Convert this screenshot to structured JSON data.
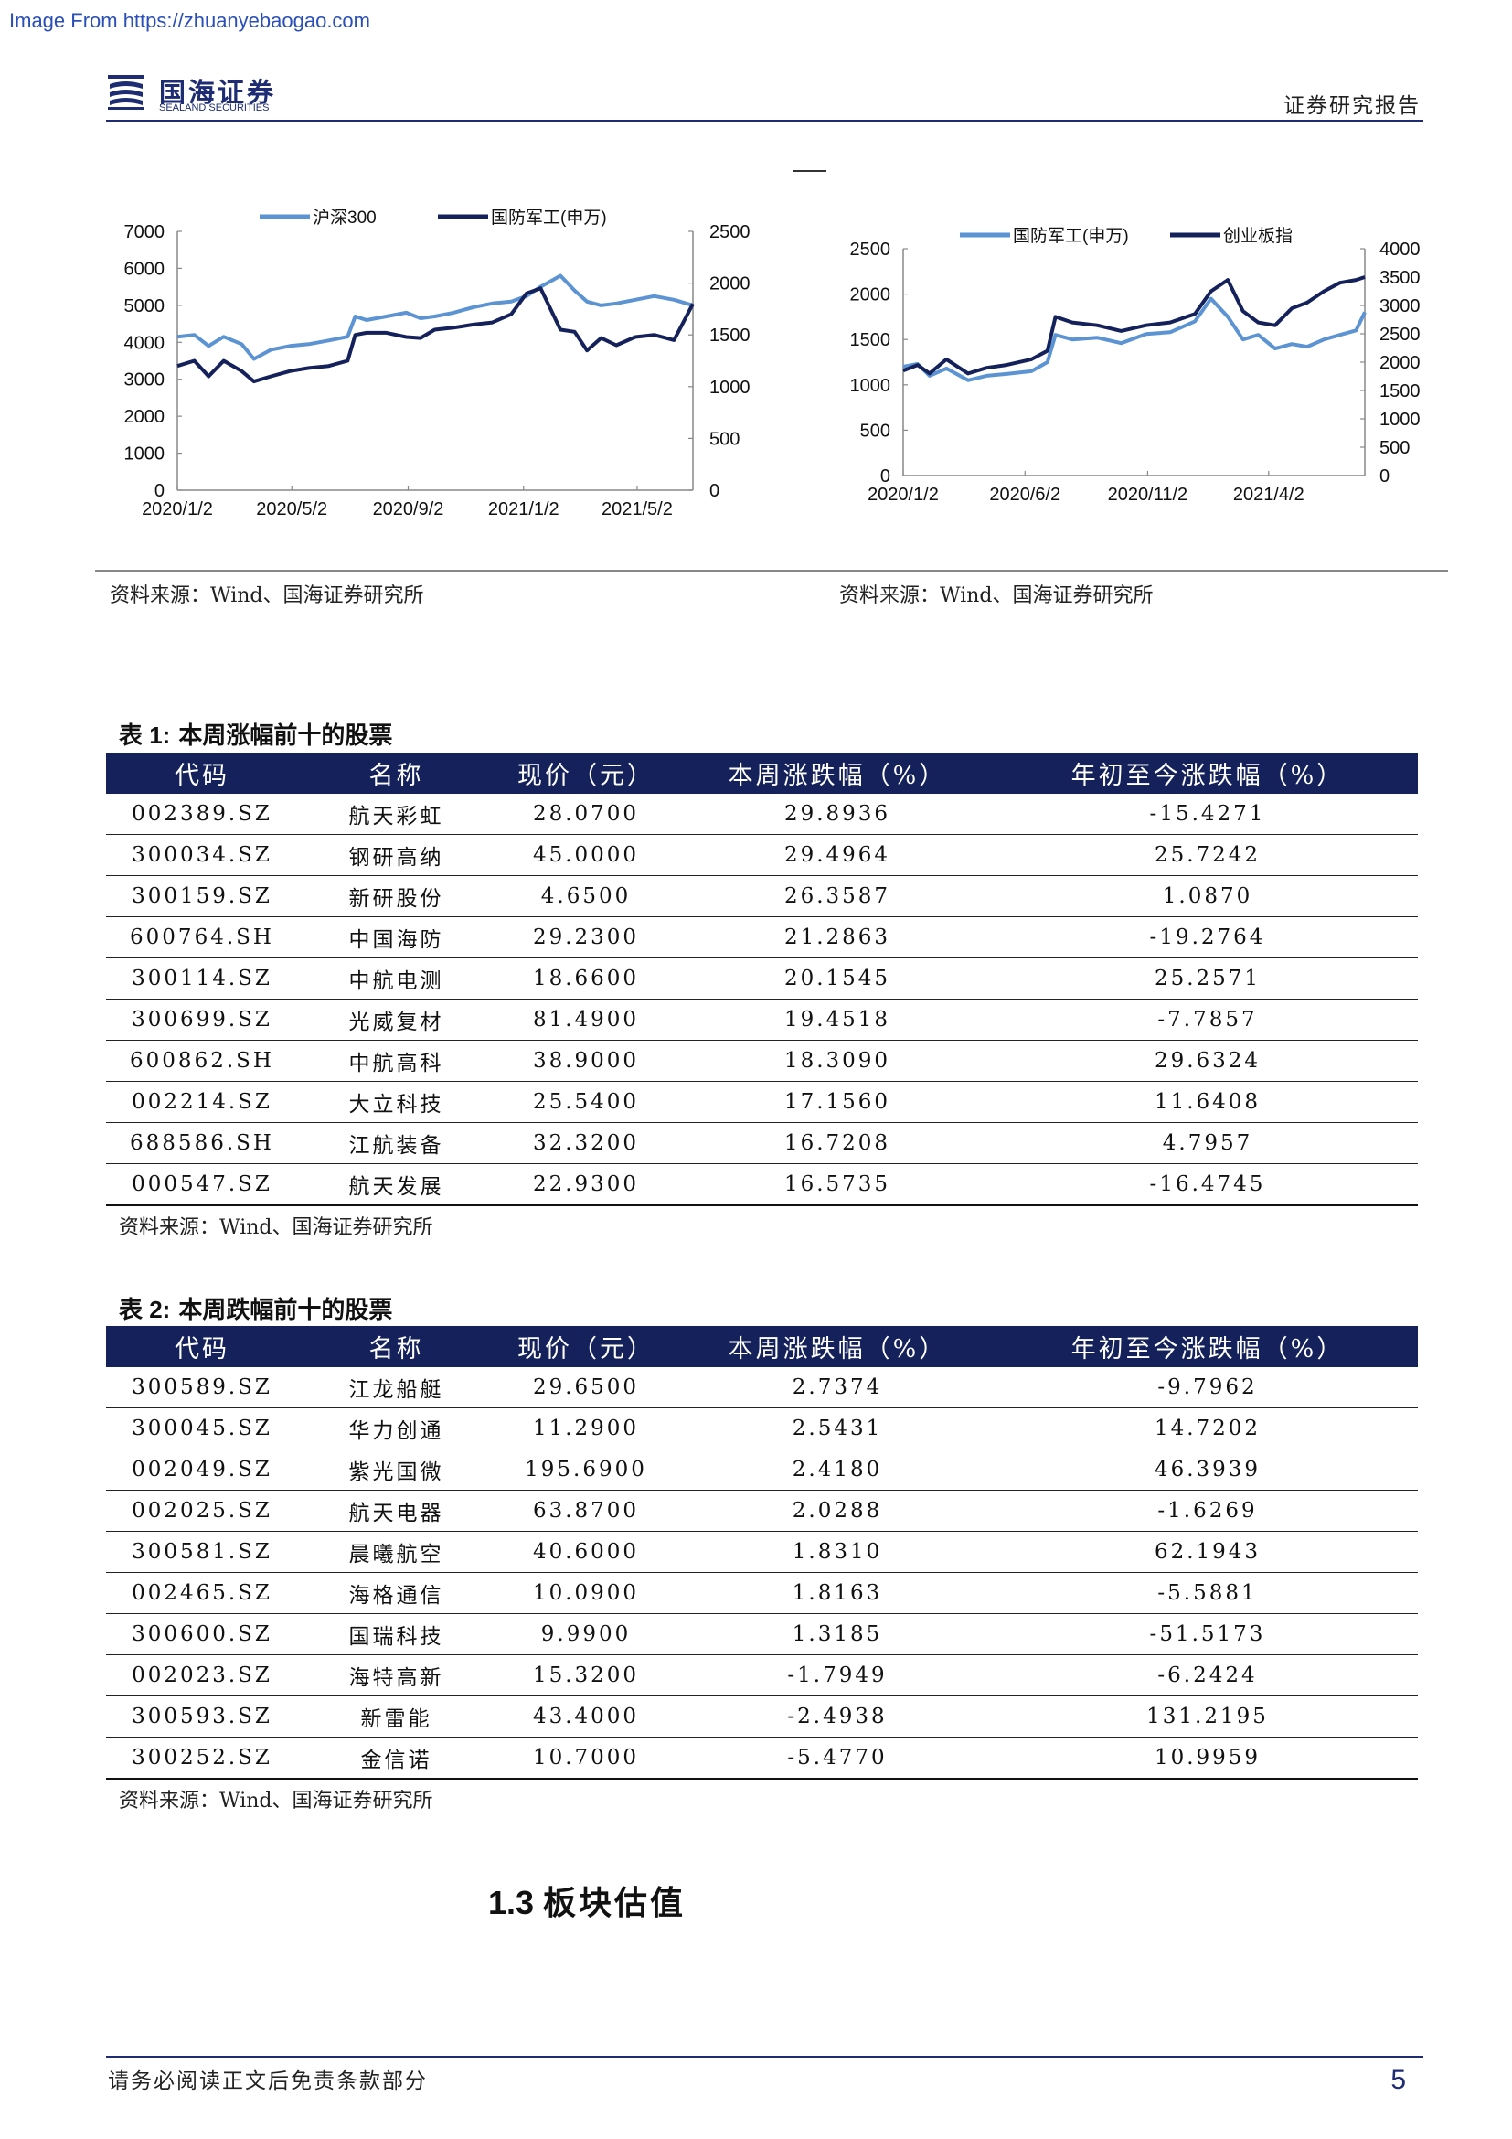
{
  "watermark": "Image From https://zhuanyebaogao.com",
  "header": {
    "logo_cn": "国海证券",
    "logo_en": "SEALAND SECURITIES",
    "report_type": "证券研究报告"
  },
  "colors": {
    "navy": "#14215a",
    "light_blue": "#5b93d3",
    "dark_line": "#14215a"
  },
  "chart_data": [
    {
      "type": "line",
      "title": "",
      "legend": [
        "沪深300",
        "国防军工(申万)"
      ],
      "legend_placement": "top",
      "x_ticks": [
        "2020/1/2",
        "2020/5/2",
        "2020/9/2",
        "2021/1/2",
        "2021/5/2"
      ],
      "x_range": [
        "2020-01-02",
        "2021-06-30"
      ],
      "y_left": {
        "ticks": [
          0,
          1000,
          2000,
          3000,
          4000,
          5000,
          6000,
          7000
        ],
        "range": [
          0,
          7000
        ]
      },
      "y_right": {
        "ticks": [
          0,
          500,
          1000,
          1500,
          2000,
          2500
        ],
        "range": [
          0,
          2500
        ]
      },
      "series": [
        {
          "name": "沪深300",
          "axis": "left",
          "color": "light_blue",
          "x": [
            "2020-01-02",
            "2020-01-20",
            "2020-02-04",
            "2020-02-20",
            "2020-03-10",
            "2020-03-23",
            "2020-04-10",
            "2020-04-30",
            "2020-05-20",
            "2020-06-10",
            "2020-06-30",
            "2020-07-08",
            "2020-07-20",
            "2020-08-10",
            "2020-08-31",
            "2020-09-15",
            "2020-09-30",
            "2020-10-20",
            "2020-11-10",
            "2020-11-30",
            "2020-12-20",
            "2021-01-05",
            "2021-01-20",
            "2021-02-10",
            "2021-02-25",
            "2021-03-10",
            "2021-03-25",
            "2021-04-10",
            "2021-04-30",
            "2021-05-20",
            "2021-06-10",
            "2021-06-30"
          ],
          "values": [
            4150,
            4200,
            3900,
            4150,
            3950,
            3550,
            3800,
            3900,
            3950,
            4050,
            4150,
            4700,
            4600,
            4700,
            4800,
            4650,
            4700,
            4800,
            4950,
            5050,
            5100,
            5250,
            5500,
            5800,
            5400,
            5100,
            5000,
            5050,
            5150,
            5250,
            5150,
            5000
          ]
        },
        {
          "name": "国防军工(申万)",
          "axis": "right",
          "color": "dark_line",
          "x": [
            "2020-01-02",
            "2020-01-20",
            "2020-02-04",
            "2020-02-20",
            "2020-03-10",
            "2020-03-23",
            "2020-04-10",
            "2020-04-30",
            "2020-05-20",
            "2020-06-10",
            "2020-06-30",
            "2020-07-08",
            "2020-07-20",
            "2020-08-10",
            "2020-08-31",
            "2020-09-15",
            "2020-09-30",
            "2020-10-20",
            "2020-11-10",
            "2020-11-30",
            "2020-12-20",
            "2021-01-05",
            "2021-01-20",
            "2021-02-10",
            "2021-02-25",
            "2021-03-10",
            "2021-03-25",
            "2021-04-10",
            "2021-04-30",
            "2021-05-20",
            "2021-06-10",
            "2021-06-30"
          ],
          "values": [
            1200,
            1250,
            1100,
            1250,
            1150,
            1050,
            1100,
            1150,
            1180,
            1200,
            1250,
            1500,
            1520,
            1520,
            1480,
            1470,
            1550,
            1570,
            1600,
            1620,
            1700,
            1900,
            1950,
            1550,
            1530,
            1350,
            1470,
            1400,
            1480,
            1500,
            1450,
            1800
          ]
        }
      ]
    },
    {
      "type": "line",
      "title": "",
      "legend": [
        "国防军工(申万)",
        "创业板指"
      ],
      "legend_placement": "top",
      "x_ticks": [
        "2020/1/2",
        "2020/6/2",
        "2020/11/2",
        "2021/4/2"
      ],
      "x_range": [
        "2020-01-02",
        "2021-07-31"
      ],
      "y_left": {
        "ticks": [
          0,
          500,
          1000,
          1500,
          2000,
          2500
        ],
        "range": [
          0,
          2500
        ]
      },
      "y_right": {
        "ticks": [
          0,
          500,
          1000,
          1500,
          2000,
          2500,
          3000,
          3500,
          4000
        ],
        "range": [
          0,
          4000
        ]
      },
      "series": [
        {
          "name": "国防军工(申万)",
          "axis": "left",
          "color": "light_blue",
          "x": [
            "2020-01-02",
            "2020-01-20",
            "2020-02-04",
            "2020-02-25",
            "2020-03-23",
            "2020-04-15",
            "2020-05-10",
            "2020-06-10",
            "2020-06-30",
            "2020-07-10",
            "2020-07-31",
            "2020-08-31",
            "2020-09-30",
            "2020-10-31",
            "2020-11-30",
            "2020-12-31",
            "2021-01-20",
            "2021-02-10",
            "2021-03-01",
            "2021-03-20",
            "2021-04-10",
            "2021-05-01",
            "2021-05-20",
            "2021-06-10",
            "2021-06-30",
            "2021-07-20",
            "2021-07-31"
          ],
          "values": [
            1200,
            1230,
            1100,
            1180,
            1050,
            1100,
            1120,
            1150,
            1250,
            1550,
            1500,
            1520,
            1460,
            1560,
            1580,
            1700,
            1950,
            1750,
            1500,
            1550,
            1400,
            1450,
            1420,
            1500,
            1550,
            1600,
            1800
          ]
        },
        {
          "name": "创业板指",
          "axis": "right",
          "color": "dark_line",
          "x": [
            "2020-01-02",
            "2020-01-20",
            "2020-02-04",
            "2020-02-25",
            "2020-03-23",
            "2020-04-15",
            "2020-05-10",
            "2020-06-10",
            "2020-06-30",
            "2020-07-10",
            "2020-07-31",
            "2020-08-31",
            "2020-09-30",
            "2020-10-31",
            "2020-11-30",
            "2020-12-31",
            "2021-01-20",
            "2021-02-10",
            "2021-03-01",
            "2021-03-20",
            "2021-04-10",
            "2021-05-01",
            "2021-05-20",
            "2021-06-10",
            "2021-06-30",
            "2021-07-20",
            "2021-07-31"
          ],
          "values": [
            1850,
            1950,
            1800,
            2050,
            1800,
            1900,
            1950,
            2050,
            2200,
            2800,
            2700,
            2650,
            2550,
            2650,
            2700,
            2850,
            3250,
            3450,
            2900,
            2700,
            2650,
            2950,
            3050,
            3250,
            3400,
            3450,
            3500
          ]
        }
      ]
    }
  ],
  "sources": {
    "chart1": "资料来源：Wind、国海证券研究所",
    "chart2": "资料来源：Wind、国海证券研究所",
    "table1": "资料来源：Wind、国海证券研究所",
    "table2": "资料来源：Wind、国海证券研究所"
  },
  "table1": {
    "title_prefix": "表 1:",
    "title_text": "本周涨幅前十的股票",
    "headers": [
      "代码",
      "名称",
      "现价（元）",
      "本周涨跌幅（%）",
      "年初至今涨跌幅（%）"
    ],
    "rows": [
      [
        "002389.SZ",
        "航天彩虹",
        "28.0700",
        "29.8936",
        "-15.4271"
      ],
      [
        "300034.SZ",
        "钢研高纳",
        "45.0000",
        "29.4964",
        "25.7242"
      ],
      [
        "300159.SZ",
        "新研股份",
        "4.6500",
        "26.3587",
        "1.0870"
      ],
      [
        "600764.SH",
        "中国海防",
        "29.2300",
        "21.2863",
        "-19.2764"
      ],
      [
        "300114.SZ",
        "中航电测",
        "18.6600",
        "20.1545",
        "25.2571"
      ],
      [
        "300699.SZ",
        "光威复材",
        "81.4900",
        "19.4518",
        "-7.7857"
      ],
      [
        "600862.SH",
        "中航高科",
        "38.9000",
        "18.3090",
        "29.6324"
      ],
      [
        "002214.SZ",
        "大立科技",
        "25.5400",
        "17.1560",
        "11.6408"
      ],
      [
        "688586.SH",
        "江航装备",
        "32.3200",
        "16.7208",
        "4.7957"
      ],
      [
        "000547.SZ",
        "航天发展",
        "22.9300",
        "16.5735",
        "-16.4745"
      ]
    ]
  },
  "table2": {
    "title_prefix": "表 2:",
    "title_text": "本周跌幅前十的股票",
    "headers": [
      "代码",
      "名称",
      "现价（元）",
      "本周涨跌幅（%）",
      "年初至今涨跌幅（%）"
    ],
    "rows": [
      [
        "300589.SZ",
        "江龙船艇",
        "29.6500",
        "2.7374",
        "-9.7962"
      ],
      [
        "300045.SZ",
        "华力创通",
        "11.2900",
        "2.5431",
        "14.7202"
      ],
      [
        "002049.SZ",
        "紫光国微",
        "195.6900",
        "2.4180",
        "46.3939"
      ],
      [
        "002025.SZ",
        "航天电器",
        "63.8700",
        "2.0288",
        "-1.6269"
      ],
      [
        "300581.SZ",
        "晨曦航空",
        "40.6000",
        "1.8310",
        "62.1943"
      ],
      [
        "002465.SZ",
        "海格通信",
        "10.0900",
        "1.8163",
        "-5.5881"
      ],
      [
        "300600.SZ",
        "国瑞科技",
        "9.9900",
        "1.3185",
        "-51.5173"
      ],
      [
        "002023.SZ",
        "海特高新",
        "15.3200",
        "-1.7949",
        "-6.2424"
      ],
      [
        "300593.SZ",
        "新雷能",
        "43.4000",
        "-2.4938",
        "131.2195"
      ],
      [
        "300252.SZ",
        "金信诺",
        "10.7000",
        "-5.4770",
        "10.9959"
      ]
    ]
  },
  "section": {
    "number": "1.3",
    "title": "板块估值"
  },
  "footer": {
    "disclaimer": "请务必阅读正文后免责条款部分",
    "page": "5"
  }
}
